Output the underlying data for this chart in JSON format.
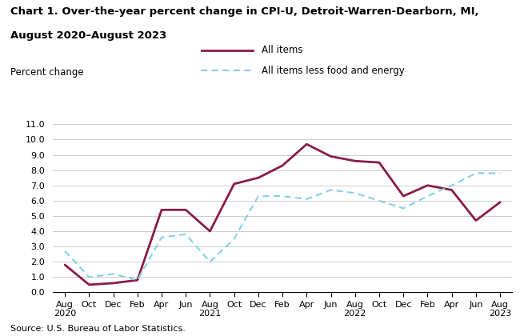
{
  "title_line1": "Chart 1. Over-the-year percent change in CPI-U, Detroit-Warren-Dearborn, MI,",
  "title_line2": "August 2020–August 2023",
  "ylabel": "Percent change",
  "source": "Source: U.S. Bureau of Labor Statistics.",
  "ylim": [
    0.0,
    11.0
  ],
  "yticks": [
    0.0,
    1.0,
    2.0,
    3.0,
    4.0,
    5.0,
    6.0,
    7.0,
    8.0,
    9.0,
    10.0,
    11.0
  ],
  "x_labels": [
    "Aug\n2020",
    "Oct",
    "Dec",
    "Feb",
    "Apr",
    "Jun",
    "Aug\n2021",
    "Oct",
    "Dec",
    "Feb",
    "Apr",
    "Jun",
    "Aug\n2022",
    "Oct",
    "Dec",
    "Feb",
    "Apr",
    "Jun",
    "Aug\n2023"
  ],
  "all_items": [
    1.8,
    0.5,
    0.6,
    0.8,
    5.4,
    5.4,
    4.0,
    7.1,
    7.5,
    8.3,
    9.7,
    8.9,
    8.6,
    8.5,
    6.3,
    7.0,
    6.7,
    4.7,
    5.9
  ],
  "core_items": [
    2.7,
    1.0,
    1.2,
    0.8,
    3.6,
    3.8,
    2.0,
    3.5,
    6.3,
    6.3,
    6.1,
    6.7,
    6.5,
    6.0,
    5.5,
    6.3,
    7.0,
    7.8,
    7.8
  ],
  "all_items_color": "#8B1A4A",
  "core_items_color": "#87CEEB",
  "all_items_linewidth": 2.0,
  "core_items_linewidth": 1.5,
  "legend_all_items": "All items",
  "legend_core": "All items less food and energy"
}
